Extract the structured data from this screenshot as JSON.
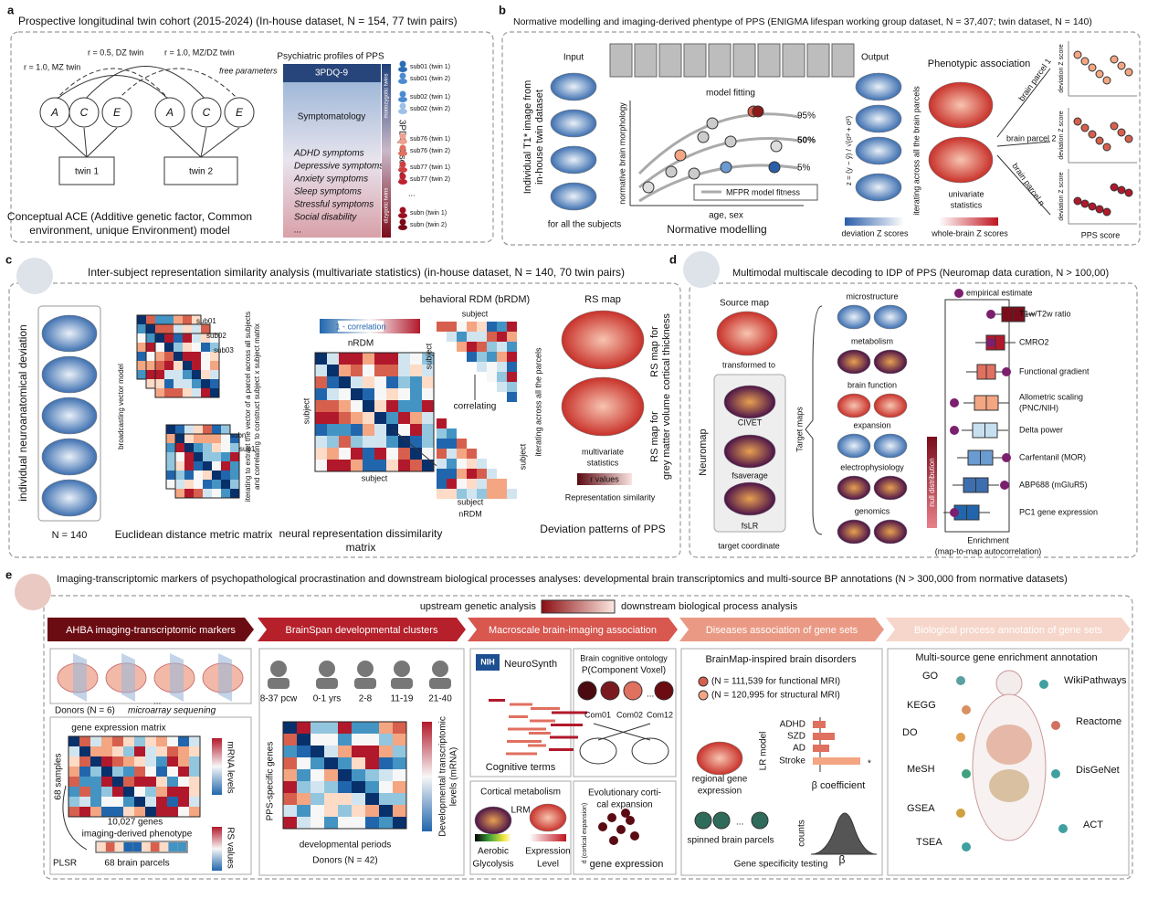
{
  "a": {
    "letter": "a",
    "title": "Prospective longitudinal twin cohort (2015-2024) (In-house dataset, N = 154, 77 twin pairs)",
    "mz": "r = 1.0, MZ twin",
    "dz": "r = 0.5, DZ twin",
    "mzdz": "r = 1.0, MZ/DZ twin",
    "free": "free parameters",
    "nodes": [
      "A",
      "C",
      "E",
      "A",
      "C",
      "E"
    ],
    "twins": [
      "twin 1",
      "twin 2"
    ],
    "caption": [
      "Conceptual ACE (Additive genetic factor, Common",
      "environment, unique Environment) model"
    ],
    "profile_title": "Psychiatric profiles of PPS",
    "pdq": "3PDQ-9",
    "symptomatology": "Symptomatology",
    "symptoms": [
      "ADHD symptoms",
      "Depressive symptoms",
      "Anxiety symptoms",
      "Sleep symptoms",
      "Stressful symptoms",
      "Social disability",
      "..."
    ],
    "scores": "3PDQ-9 scores",
    "mono": "monozygotic twins",
    "di": "dizygotic twins",
    "subjects": [
      "sub01 (twin 1)",
      "sub01 (twin 2)",
      "sub02 (twin 1)",
      "sub02 (twin 2)",
      "sub76 (twin 1)",
      "sub76 (twin 2)",
      "sub77 (twin 1)",
      "sub77 (twin 2)",
      "subn (twin 1)",
      "subn (twin 2)"
    ]
  },
  "b": {
    "letter": "b",
    "title": "Normative modelling and imaging-derived phentype of PPS (ENIGMA lifespan working group dataset, N = 37,407; twin dataset, N = 140)",
    "input": "Input",
    "ylabel": [
      "Individual T1* image from",
      "in-house twin dataset"
    ],
    "for_all": "for all the subjects",
    "model_fitting": "model fitting",
    "morph": "normative brain morphology",
    "pct": [
      "95%",
      "50%",
      "5%"
    ],
    "legend": "MFPR model fitness",
    "xlabel": "age, sex",
    "section": "Normative modelling",
    "output": "Output",
    "formula": "z = (y − ŷ) / √(σ² + σ²)",
    "deviation": "deviation Z scores",
    "iterating": "iterating across all the brain parcels",
    "phen": "Phenotypic association",
    "univariate": [
      "univariate",
      "statistics"
    ],
    "whole": "whole-brain Z scores",
    "parcels": [
      "brain parcel 1",
      "brain parcel 2",
      "brain parcel n"
    ],
    "dz": "deviation Z score",
    "pps": "PPS score"
  },
  "c": {
    "letter": "c",
    "title": "Inter-subject representation similarity analysis (multivariate statistics) (in-house dataset, N = 140, 70 twin pairs)",
    "ind": "individual neuroanatomical deviation",
    "n": "N = 140",
    "broadcast": "broadcasting vector model",
    "euclid": "Euclidean distance metric matrix",
    "subs": [
      "sub01",
      "sub02",
      "sub03",
      "subn",
      "sub1"
    ],
    "iter": [
      "iterating to extract the vector of a parcel across all subjects",
      "and correlating to construct subject x subject matrix"
    ],
    "corr_scale": "1 - correlation",
    "nrdm": "nRDM",
    "subject": "subject",
    "nrdm_caption": [
      "neural representation dissimilarity",
      "matrix"
    ],
    "brdm": "behavioral RDM (bRDM)",
    "correlating": "correlating",
    "iter_parcels": "iterating across all the parcels",
    "rsmap": "RS map",
    "rs_ct": [
      "RS map for",
      "cortical thickness"
    ],
    "rs_gmv": [
      "RS map for",
      "grey matter volume"
    ],
    "multi": [
      "multivariate",
      "statistics"
    ],
    "rvalues": "r values",
    "rep_sim": "Representation similarity",
    "dev_patterns": "Deviation patterns of PPS"
  },
  "d": {
    "letter": "d",
    "title": "Multimodal multiscale decoding to IDP of PPS (Neuromap data curation, N > 100,00)",
    "source": "Source map",
    "transformed": "transformed to",
    "neuromap": "Neuromap",
    "spaces": [
      "CIVET",
      "fsaverage",
      "fsLR"
    ],
    "target_coord": "target coordinate",
    "target_maps": "Target maps",
    "maps": [
      "microstructure",
      "metabolism",
      "brain function",
      "expansion",
      "electrophysiology",
      "genomics"
    ],
    "null": "null distribution",
    "empirical": "empirical estimate",
    "terms": [
      "T1w/T2w ratio",
      "CMRO2",
      "Functional gradient",
      "Allometric scaling",
      "Delta power",
      "Carfentanil (MOR)",
      "ABP688 (mGluR5)",
      "PC1 gene expression"
    ],
    "allometric_note": "(PNC/NIH)",
    "enrich": [
      "Enrichment",
      "(map-to-map autocorrelation)"
    ]
  },
  "e": {
    "letter": "e",
    "title": "Imaging-transcriptomic markers of psychopathological procrastination and downstream biological processes analyses: developmental brain transcriptomics and multi-source BP annotations (N > 300,000 from normative datasets)",
    "upstream": "upstream genetic analysis",
    "downstream": "downstream biological process analysis",
    "headers": [
      "AHBA imaging-transcriptomic markers",
      "BrainSpan developmental clusters",
      "Macroscale brain-imaging association",
      "Diseases association of gene sets",
      "Biological process annotation of gene sets"
    ],
    "donors": "Donors (N = 6)",
    "micro": "microarray sequening",
    "dots": "...",
    "gem": "gene expression matrix",
    "samples": "68 samples",
    "genes": "10,027 genes",
    "idp": "imaging-derived phenotype",
    "plsr": "PLSR",
    "parcels68": "68 brain parcels",
    "mrna": "mRNA levels",
    "rs": "RS values",
    "ages": [
      "8-37 pcw",
      "0-1 yrs",
      "2-8",
      "11-19",
      "21-40"
    ],
    "pps_genes": "PPS-specific genes",
    "dev_periods": "developmental periods",
    "donors42": "Donors (N = 42)",
    "dev_levels": [
      "Developmental transcriptomic",
      "levels (mRNA)"
    ],
    "nih": "NIH",
    "neurosynth": "NeuroSynth",
    "cog_terms": "Cognitive terms",
    "ontology": [
      "Brain cognitive ontology",
      "P(Component Voxel)"
    ],
    "coms": [
      "Com01",
      "Com02",
      "Com12"
    ],
    "cortical_met": "Cortical metabolism",
    "lrm": "LRM",
    "aerobic": [
      "Aerobic",
      "Glycolysis"
    ],
    "expression": [
      "Expression",
      "Level"
    ],
    "evo": [
      "Evolutionary corti-",
      "cal expansion"
    ],
    "dcortexp": "d (cortical expansion)",
    "gene_expr": "gene expression",
    "brainmap": "BrainMap-inspired brain disorders",
    "func": "(N = 111,539 for functional MRI)",
    "struct": "(N = 120,995 for structural MRI)",
    "lr": "LR model",
    "disorders": [
      "ADHD",
      "SZD",
      "AD",
      "Stroke"
    ],
    "star": "*",
    "regional": [
      "regional gene",
      "expression"
    ],
    "beta_coef": "β coefficient",
    "spinned": "spinned brain parcels",
    "counts": "counts",
    "beta": "β",
    "specificity": "Gene specificity testing",
    "multi": "Multi-source gene enrichment annotation",
    "sources_left": [
      "GO",
      "KEGG",
      "DO",
      "MeSH",
      "GSEA",
      "TSEA"
    ],
    "sources_right": [
      "WikiPathways",
      "Reactome",
      "DisGeNet",
      "ACT"
    ]
  }
}
